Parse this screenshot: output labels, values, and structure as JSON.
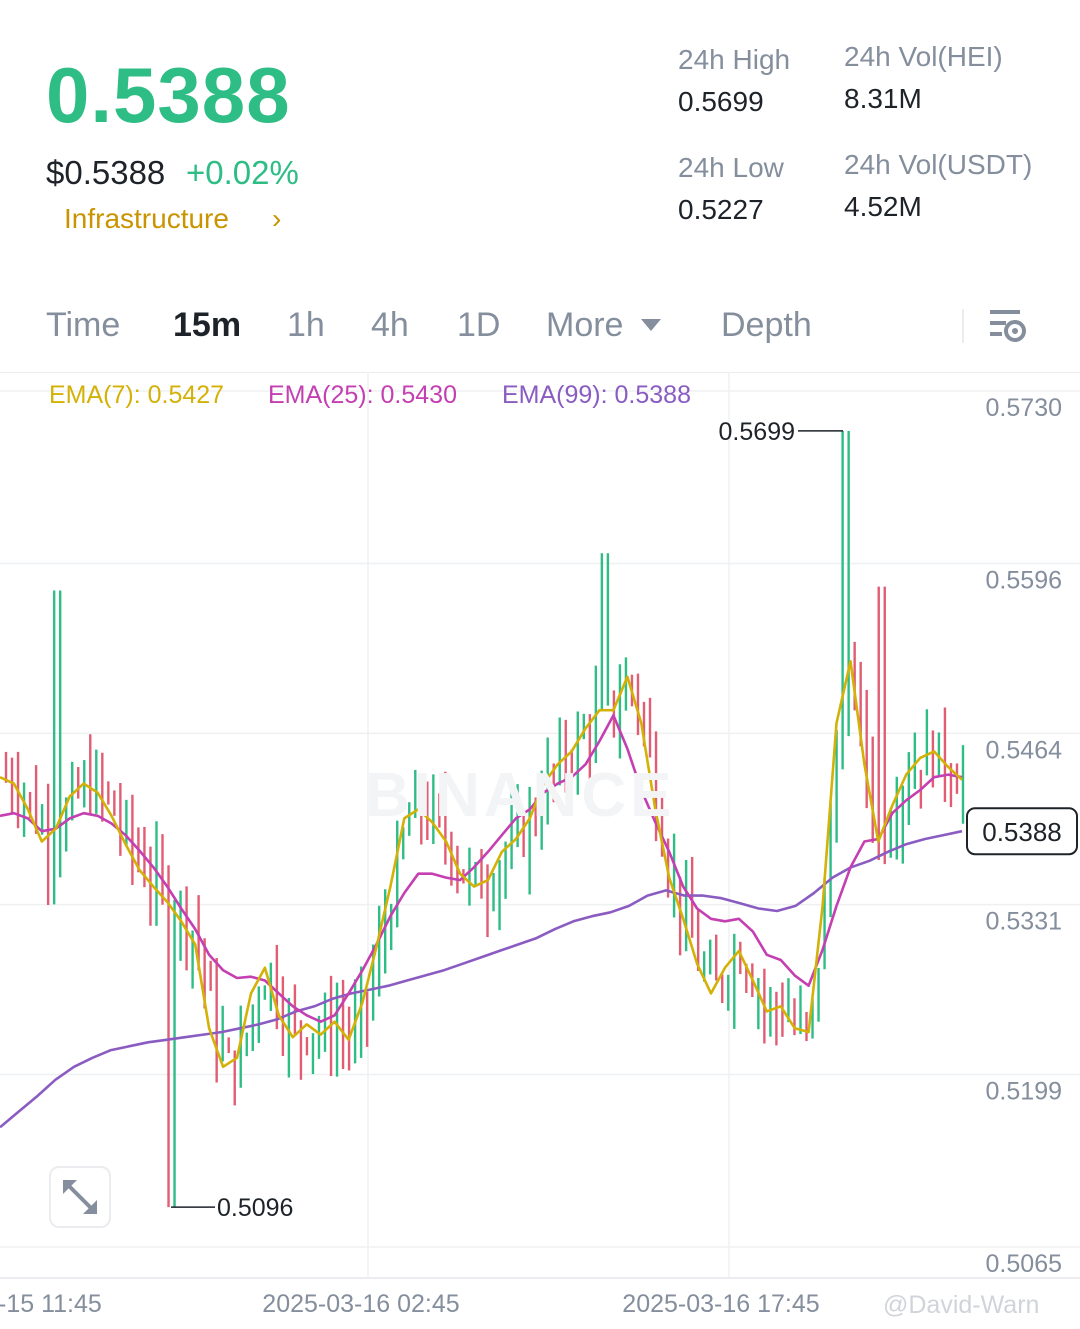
{
  "ticker": {
    "last_price": "0.5388",
    "usd_price": "$0.5388",
    "change_pct": "+0.02%",
    "category": "Infrastructure",
    "category_arrow": "›"
  },
  "stats": [
    {
      "label": "24h High",
      "value": "0.5699"
    },
    {
      "label": "24h Vol(HEI)",
      "value": "8.31M"
    },
    {
      "label": "24h Low",
      "value": "0.5227"
    },
    {
      "label": "24h Vol(USDT)",
      "value": "4.52M"
    }
  ],
  "tabs": [
    {
      "label": "Time",
      "active": false
    },
    {
      "label": "15m",
      "active": true
    },
    {
      "label": "1h",
      "active": false
    },
    {
      "label": "4h",
      "active": false
    },
    {
      "label": "1D",
      "active": false
    },
    {
      "label": "More",
      "active": false
    },
    {
      "label": "Depth",
      "active": false
    }
  ],
  "icons": {
    "more_caret": "caret-down-icon",
    "settings": "chart-settings-icon",
    "expand": "expand-icon",
    "watermark": "binance-logo-icon"
  },
  "ema": [
    {
      "label": "EMA(7): 0.5427",
      "color": "#d4b107"
    },
    {
      "label": "EMA(25): 0.5430",
      "color": "#c43fb1"
    },
    {
      "label": "EMA(99): 0.5388",
      "color": "#8a5cc2"
    }
  ],
  "colors": {
    "up": "#2ebd85",
    "down": "#e05d73",
    "price": "#2ebd85",
    "category": "#c99400"
  },
  "watermark_text": "BINANCE",
  "credit": "@David-Warn",
  "chart_data": {
    "type": "candlestick",
    "interval": "15m",
    "y_ticks": [
      "0.5730",
      "0.5596",
      "0.5464",
      "0.5331",
      "0.5199",
      "0.5065"
    ],
    "y_tick_values": [
      0.573,
      0.5596,
      0.5464,
      0.5331,
      0.5199,
      0.5065
    ],
    "ylim": [
      0.5065,
      0.573
    ],
    "x_labels": [
      "-15 11:45",
      "2025-03-16 02:45",
      "2025-03-16 17:45"
    ],
    "last_price_label": "0.5388",
    "last_price": 0.5388,
    "high_marker": {
      "label": "0.5699",
      "value": 0.5699
    },
    "low_marker": {
      "label": "0.5096",
      "value": 0.5096
    },
    "ema7": [
      0.543,
      0.5425,
      0.5405,
      0.538,
      0.539,
      0.5415,
      0.5425,
      0.5418,
      0.54,
      0.5378,
      0.5358,
      0.5345,
      0.5333,
      0.5318,
      0.53,
      0.5235,
      0.5205,
      0.5212,
      0.5262,
      0.5282,
      0.5245,
      0.5228,
      0.5238,
      0.523,
      0.524,
      0.5226,
      0.5255,
      0.5298,
      0.5345,
      0.5398,
      0.5405,
      0.5395,
      0.538,
      0.5355,
      0.5345,
      0.535,
      0.5372,
      0.5382,
      0.5398,
      0.5425,
      0.544,
      0.545,
      0.5468,
      0.5482,
      0.5482,
      0.5508,
      0.5472,
      0.5405,
      0.5352,
      0.532,
      0.5285,
      0.5262,
      0.5282,
      0.5295,
      0.5272,
      0.5248,
      0.5252,
      0.5235,
      0.5232,
      0.533,
      0.5472,
      0.552,
      0.544,
      0.538,
      0.5408,
      0.5432,
      0.5445,
      0.545,
      0.5438,
      0.5428
    ],
    "ema25": [
      0.54,
      0.5402,
      0.5398,
      0.5388,
      0.539,
      0.5398,
      0.5402,
      0.54,
      0.5394,
      0.5385,
      0.5373,
      0.536,
      0.5345,
      0.5328,
      0.5312,
      0.5292,
      0.528,
      0.5274,
      0.5275,
      0.5272,
      0.5262,
      0.5252,
      0.5245,
      0.524,
      0.5245,
      0.5262,
      0.528,
      0.53,
      0.5322,
      0.534,
      0.5355,
      0.5355,
      0.5352,
      0.535,
      0.536,
      0.5372,
      0.5385,
      0.5398,
      0.5405,
      0.5418,
      0.5425,
      0.543,
      0.544,
      0.5458,
      0.5478,
      0.5452,
      0.542,
      0.5395,
      0.5372,
      0.5345,
      0.5328,
      0.532,
      0.5318,
      0.532,
      0.531,
      0.5292,
      0.5288,
      0.5276,
      0.5268,
      0.5296,
      0.533,
      0.536,
      0.538,
      0.5382,
      0.5402,
      0.5412,
      0.542,
      0.543,
      0.5432,
      0.543
    ],
    "ema99": [
      0.5158,
      0.517,
      0.5182,
      0.5195,
      0.5205,
      0.5212,
      0.5218,
      0.5221,
      0.5224,
      0.5226,
      0.5228,
      0.523,
      0.5232,
      0.5235,
      0.5238,
      0.5242,
      0.5248,
      0.5252,
      0.5258,
      0.5262,
      0.5265,
      0.5268,
      0.5272,
      0.5276,
      0.528,
      0.5285,
      0.529,
      0.5295,
      0.53,
      0.5305,
      0.5312,
      0.5318,
      0.5322,
      0.5325,
      0.533,
      0.5338,
      0.5342,
      0.5338,
      0.5338,
      0.5336,
      0.5332,
      0.5328,
      0.5326,
      0.533,
      0.534,
      0.5352,
      0.536,
      0.5365,
      0.5372,
      0.5378,
      0.5382,
      0.5385,
      0.5388
    ]
  }
}
